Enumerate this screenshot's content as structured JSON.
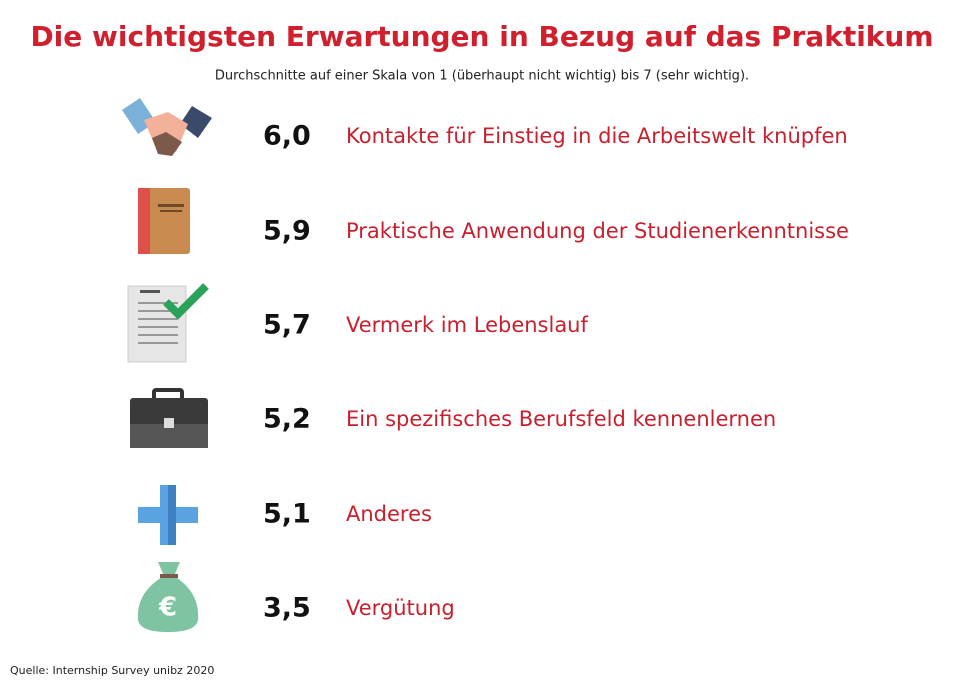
{
  "header": {
    "title": "Die wichtigsten Erwartungen in Bezug auf das Praktikum",
    "subtitle": "Durchschnitte auf einer Skala von 1 (überhaupt nicht wichtig) bis 7 (sehr wichtig)."
  },
  "items": [
    {
      "value": "6,0",
      "label": "Kontakte für Einstieg in die Arbeitswelt knüpfen"
    },
    {
      "value": "5,9",
      "label": "Praktische Anwendung der Studienerkenntnisse"
    },
    {
      "value": "5,7",
      "label": "Vermerk im Lebenslauf"
    },
    {
      "value": "5,2",
      "label": "Ein spezifisches Berufsfeld kennenlernen"
    },
    {
      "value": "5,1",
      "label": "Anderes"
    },
    {
      "value": "3,5",
      "label": "Vergütung"
    }
  ],
  "source": "Quelle: Internship Survey unibz 2020"
}
